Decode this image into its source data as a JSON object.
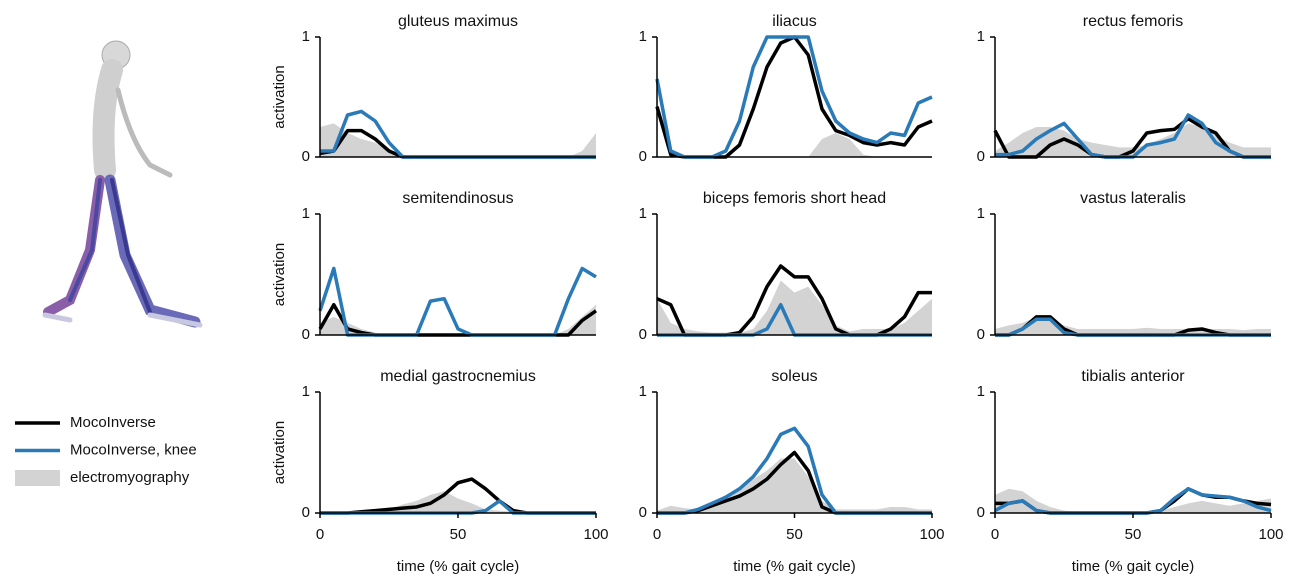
{
  "chart_data": [
    {
      "type": "line",
      "title": "gluteus maximus",
      "ylabel": "activation",
      "xlim": [
        0,
        100
      ],
      "ylim": [
        0,
        1
      ],
      "yticks": [
        0,
        1
      ],
      "x": [
        0,
        5,
        10,
        15,
        20,
        25,
        30,
        35,
        40,
        45,
        50,
        55,
        60,
        65,
        70,
        75,
        80,
        85,
        90,
        95,
        100
      ],
      "series": [
        {
          "color": "#000000",
          "style": "line",
          "values": [
            0.03,
            0.05,
            0.22,
            0.22,
            0.15,
            0.05,
            0,
            0,
            0,
            0,
            0,
            0,
            0,
            0,
            0,
            0,
            0,
            0,
            0,
            0,
            0
          ]
        },
        {
          "color": "#2a7ab8",
          "style": "line",
          "values": [
            0.05,
            0.05,
            0.35,
            0.38,
            0.3,
            0.12,
            0,
            0,
            0,
            0,
            0,
            0,
            0,
            0,
            0,
            0,
            0,
            0,
            0,
            0,
            0
          ]
        },
        {
          "color": "#d3d3d3",
          "style": "area",
          "values": [
            0.25,
            0.28,
            0.2,
            0.15,
            0.12,
            0.05,
            0.02,
            0,
            0,
            0,
            0,
            0,
            0,
            0,
            0,
            0,
            0,
            0,
            0,
            0.05,
            0.2
          ]
        }
      ]
    },
    {
      "type": "line",
      "title": "iliacus",
      "xlim": [
        0,
        100
      ],
      "ylim": [
        0,
        1
      ],
      "yticks": [
        0,
        1
      ],
      "x": [
        0,
        5,
        10,
        15,
        20,
        25,
        30,
        35,
        40,
        45,
        50,
        55,
        60,
        65,
        70,
        75,
        80,
        85,
        90,
        95,
        100
      ],
      "series": [
        {
          "color": "#000000",
          "style": "line",
          "values": [
            0.42,
            0.02,
            0,
            0,
            0,
            0,
            0.1,
            0.4,
            0.75,
            0.95,
            1,
            0.85,
            0.4,
            0.22,
            0.18,
            0.12,
            0.1,
            0.12,
            0.1,
            0.25,
            0.3
          ]
        },
        {
          "color": "#2a7ab8",
          "style": "line",
          "values": [
            0.65,
            0.05,
            0,
            0,
            0,
            0.05,
            0.3,
            0.75,
            1,
            1,
            1,
            1,
            0.55,
            0.3,
            0.2,
            0.15,
            0.12,
            0.2,
            0.18,
            0.45,
            0.5
          ]
        },
        {
          "color": "#d3d3d3",
          "style": "area",
          "values": [
            0,
            0,
            0,
            0,
            0,
            0,
            0,
            0,
            0,
            0,
            0,
            0,
            0.15,
            0.2,
            0.15,
            0.02,
            0,
            0,
            0,
            0,
            0
          ]
        }
      ]
    },
    {
      "type": "line",
      "title": "rectus femoris",
      "xlim": [
        0,
        100
      ],
      "ylim": [
        0,
        1
      ],
      "yticks": [
        0,
        1
      ],
      "x": [
        0,
        5,
        10,
        15,
        20,
        25,
        30,
        35,
        40,
        45,
        50,
        55,
        60,
        65,
        70,
        75,
        80,
        85,
        90,
        95,
        100
      ],
      "series": [
        {
          "color": "#000000",
          "style": "line",
          "values": [
            0.22,
            0,
            0,
            0,
            0.1,
            0.15,
            0.1,
            0.02,
            0,
            0,
            0.05,
            0.2,
            0.22,
            0.23,
            0.32,
            0.25,
            0.2,
            0.05,
            0,
            0,
            0
          ]
        },
        {
          "color": "#2a7ab8",
          "style": "line",
          "values": [
            0.02,
            0.02,
            0.05,
            0.15,
            0.22,
            0.28,
            0.15,
            0.02,
            0,
            0,
            0,
            0.1,
            0.12,
            0.15,
            0.35,
            0.28,
            0.12,
            0.05,
            0,
            0,
            0
          ]
        },
        {
          "color": "#d3d3d3",
          "style": "area",
          "values": [
            0.05,
            0.12,
            0.2,
            0.25,
            0.25,
            0.22,
            0.15,
            0.12,
            0.1,
            0.08,
            0.08,
            0.1,
            0.15,
            0.2,
            0.28,
            0.25,
            0.18,
            0.12,
            0.08,
            0.08,
            0.08
          ]
        }
      ]
    },
    {
      "type": "line",
      "title": "semitendinosus",
      "ylabel": "activation",
      "xlim": [
        0,
        100
      ],
      "ylim": [
        0,
        1
      ],
      "yticks": [
        0,
        1
      ],
      "x": [
        0,
        5,
        10,
        15,
        20,
        25,
        30,
        35,
        40,
        45,
        50,
        55,
        60,
        65,
        70,
        75,
        80,
        85,
        90,
        95,
        100
      ],
      "series": [
        {
          "color": "#000000",
          "style": "line",
          "values": [
            0.05,
            0.25,
            0.05,
            0.02,
            0,
            0,
            0,
            0,
            0,
            0,
            0,
            0,
            0,
            0,
            0,
            0,
            0,
            0,
            0,
            0.12,
            0.2
          ]
        },
        {
          "color": "#2a7ab8",
          "style": "line",
          "values": [
            0.2,
            0.55,
            0,
            0,
            0,
            0,
            0,
            0,
            0.28,
            0.3,
            0.05,
            0,
            0,
            0,
            0,
            0,
            0,
            0,
            0.3,
            0.55,
            0.48
          ]
        },
        {
          "color": "#d3d3d3",
          "style": "area",
          "values": [
            0.1,
            0.15,
            0.1,
            0.05,
            0.02,
            0,
            0,
            0,
            0,
            0,
            0,
            0,
            0,
            0,
            0,
            0,
            0,
            0,
            0.05,
            0.15,
            0.25
          ]
        }
      ]
    },
    {
      "type": "line",
      "title": "biceps femoris short head",
      "xlim": [
        0,
        100
      ],
      "ylim": [
        0,
        1
      ],
      "yticks": [
        0,
        1
      ],
      "x": [
        0,
        5,
        10,
        15,
        20,
        25,
        30,
        35,
        40,
        45,
        50,
        55,
        60,
        65,
        70,
        75,
        80,
        85,
        90,
        95,
        100
      ],
      "series": [
        {
          "color": "#000000",
          "style": "line",
          "values": [
            0.3,
            0.25,
            0,
            0,
            0,
            0,
            0.02,
            0.15,
            0.4,
            0.57,
            0.48,
            0.48,
            0.3,
            0.05,
            0,
            0,
            0,
            0.05,
            0.15,
            0.35,
            0.35
          ]
        },
        {
          "color": "#2a7ab8",
          "style": "line",
          "values": [
            0,
            0,
            0,
            0,
            0,
            0,
            0,
            0,
            0.05,
            0.25,
            0,
            0,
            0,
            0,
            0,
            0,
            0,
            0,
            0,
            0,
            0
          ]
        },
        {
          "color": "#d3d3d3",
          "style": "area",
          "values": [
            0.3,
            0.1,
            0.05,
            0.03,
            0.02,
            0.02,
            0.02,
            0.05,
            0.2,
            0.45,
            0.35,
            0.4,
            0.25,
            0.08,
            0.03,
            0.05,
            0.05,
            0.05,
            0.1,
            0.2,
            0.3
          ]
        }
      ]
    },
    {
      "type": "line",
      "title": "vastus lateralis",
      "xlim": [
        0,
        100
      ],
      "ylim": [
        0,
        1
      ],
      "yticks": [
        0,
        1
      ],
      "x": [
        0,
        5,
        10,
        15,
        20,
        25,
        30,
        35,
        40,
        45,
        50,
        55,
        60,
        65,
        70,
        75,
        80,
        85,
        90,
        95,
        100
      ],
      "series": [
        {
          "color": "#000000",
          "style": "line",
          "values": [
            0,
            0,
            0.05,
            0.15,
            0.15,
            0.05,
            0,
            0,
            0,
            0,
            0,
            0,
            0,
            0,
            0.04,
            0.05,
            0.02,
            0,
            0,
            0,
            0
          ]
        },
        {
          "color": "#2a7ab8",
          "style": "line",
          "values": [
            0,
            0,
            0.05,
            0.13,
            0.13,
            0.02,
            0,
            0,
            0,
            0,
            0,
            0,
            0,
            0,
            0,
            0,
            0,
            0,
            0,
            0,
            0
          ]
        },
        {
          "color": "#d3d3d3",
          "style": "area",
          "values": [
            0.05,
            0.08,
            0.1,
            0.15,
            0.12,
            0.08,
            0.05,
            0.05,
            0.05,
            0.05,
            0.05,
            0.06,
            0.05,
            0.05,
            0.05,
            0.05,
            0.05,
            0.05,
            0.04,
            0.05,
            0.05
          ]
        }
      ]
    },
    {
      "type": "line",
      "title": "medial gastrocnemius",
      "ylabel": "activation",
      "xlabel": "time (% gait cycle)",
      "xlim": [
        0,
        100
      ],
      "ylim": [
        0,
        1
      ],
      "yticks": [
        0,
        1
      ],
      "xticks": [
        0,
        50,
        100
      ],
      "x": [
        0,
        5,
        10,
        15,
        20,
        25,
        30,
        35,
        40,
        45,
        50,
        55,
        60,
        65,
        70,
        75,
        80,
        85,
        90,
        95,
        100
      ],
      "series": [
        {
          "name": "MocoInverse",
          "color": "#000000",
          "style": "line",
          "values": [
            0,
            0,
            0,
            0.01,
            0.02,
            0.03,
            0.04,
            0.05,
            0.08,
            0.15,
            0.25,
            0.28,
            0.2,
            0.1,
            0.02,
            0,
            0,
            0,
            0,
            0,
            0
          ]
        },
        {
          "name": "MocoInverse, knee",
          "color": "#2a7ab8",
          "style": "line",
          "values": [
            0,
            0,
            0,
            0,
            0,
            0,
            0,
            0,
            0,
            0,
            0,
            0,
            0.02,
            0.1,
            0,
            0,
            0,
            0,
            0,
            0,
            0
          ]
        },
        {
          "name": "electromyography",
          "color": "#d3d3d3",
          "style": "area",
          "values": [
            0,
            0,
            0,
            0.01,
            0.02,
            0.03,
            0.07,
            0.1,
            0.15,
            0.18,
            0.12,
            0.08,
            0.03,
            0.02,
            0.01,
            0,
            0,
            0,
            0,
            0,
            0
          ]
        }
      ]
    },
    {
      "type": "line",
      "title": "soleus",
      "xlabel": "time (% gait cycle)",
      "xlim": [
        0,
        100
      ],
      "ylim": [
        0,
        1
      ],
      "yticks": [
        0,
        1
      ],
      "xticks": [
        0,
        50,
        100
      ],
      "x": [
        0,
        5,
        10,
        15,
        20,
        25,
        30,
        35,
        40,
        45,
        50,
        55,
        60,
        65,
        70,
        75,
        80,
        85,
        90,
        95,
        100
      ],
      "series": [
        {
          "color": "#000000",
          "style": "line",
          "values": [
            0,
            0,
            0,
            0.02,
            0.06,
            0.1,
            0.14,
            0.2,
            0.28,
            0.4,
            0.5,
            0.35,
            0.05,
            0,
            0,
            0,
            0,
            0,
            0,
            0,
            0
          ]
        },
        {
          "color": "#2a7ab8",
          "style": "line",
          "values": [
            0,
            0,
            0,
            0.03,
            0.08,
            0.13,
            0.2,
            0.3,
            0.45,
            0.65,
            0.7,
            0.55,
            0.15,
            0,
            0,
            0,
            0,
            0,
            0,
            0,
            0
          ]
        },
        {
          "color": "#d3d3d3",
          "style": "area",
          "values": [
            0.02,
            0.06,
            0.04,
            0.03,
            0.08,
            0.15,
            0.2,
            0.28,
            0.35,
            0.45,
            0.45,
            0.3,
            0.1,
            0.03,
            0.03,
            0.03,
            0.03,
            0.05,
            0.05,
            0.03,
            0.03
          ]
        }
      ]
    },
    {
      "type": "line",
      "title": "tibialis anterior",
      "xlabel": "time (% gait cycle)",
      "xlim": [
        0,
        100
      ],
      "ylim": [
        0,
        1
      ],
      "yticks": [
        0,
        1
      ],
      "xticks": [
        0,
        50,
        100
      ],
      "x": [
        0,
        5,
        10,
        15,
        20,
        25,
        30,
        35,
        40,
        45,
        50,
        55,
        60,
        65,
        70,
        75,
        80,
        85,
        90,
        95,
        100
      ],
      "series": [
        {
          "color": "#000000",
          "style": "line",
          "values": [
            0.08,
            0.08,
            0.1,
            0.02,
            0,
            0,
            0,
            0,
            0,
            0,
            0,
            0,
            0.02,
            0.1,
            0.2,
            0.15,
            0.13,
            0.13,
            0.1,
            0.08,
            0.07
          ]
        },
        {
          "color": "#2a7ab8",
          "style": "line",
          "values": [
            0.02,
            0.08,
            0.1,
            0.02,
            0,
            0,
            0,
            0,
            0,
            0,
            0,
            0,
            0.02,
            0.12,
            0.2,
            0.15,
            0.14,
            0.13,
            0.1,
            0.05,
            0.02
          ]
        },
        {
          "color": "#d3d3d3",
          "style": "area",
          "values": [
            0.15,
            0.2,
            0.18,
            0.1,
            0.05,
            0.02,
            0.01,
            0,
            0,
            0,
            0,
            0.01,
            0.02,
            0.05,
            0.08,
            0.1,
            0.08,
            0.06,
            0.08,
            0.1,
            0.12
          ]
        }
      ]
    }
  ]
}
